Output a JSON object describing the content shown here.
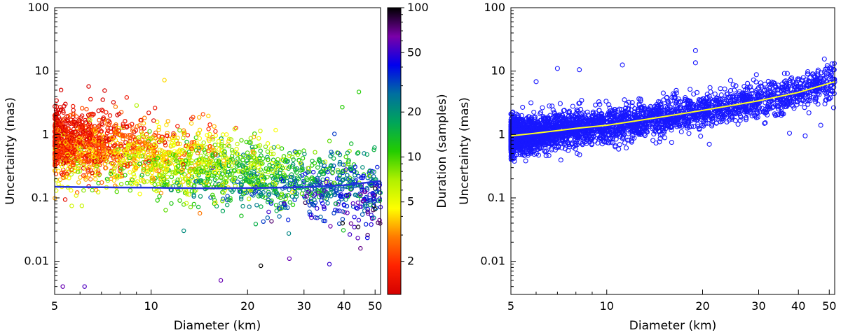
{
  "chart_data": [
    {
      "type": "scatter",
      "xlabel": "Diameter (km)",
      "ylabel": "Uncertainty (mas)",
      "xscale": "log",
      "yscale": "log",
      "xlim": [
        5,
        52
      ],
      "ylim": [
        0.003,
        100
      ],
      "xticks": [
        5,
        10,
        20,
        30,
        40,
        50
      ],
      "xtick_labels": [
        "5",
        "10",
        "20",
        "30",
        "40",
        "50"
      ],
      "yticks": [
        0.01,
        0.1,
        1,
        10,
        100
      ],
      "ytick_labels": [
        "0.01",
        "0.1",
        "1",
        "10",
        "100"
      ],
      "grid": false,
      "marker": "open-circle",
      "point_color_encoding": "Duration (samples)",
      "colorbar": {
        "label": "Duration (samples)",
        "scale": "log",
        "range": [
          1.2,
          100
        ],
        "ticks": [
          2,
          5,
          10,
          20,
          50,
          100
        ],
        "tick_labels": [
          "2",
          "5",
          "10",
          "20",
          "50",
          "100"
        ],
        "colormap": [
          "#d40000",
          "#ff2200",
          "#ff7a00",
          "#ffff00",
          "#b0f000",
          "#22cc00",
          "#00a55a",
          "#006fa0",
          "#0000ee",
          "#7a00a8",
          "#000000"
        ]
      },
      "trend_line": {
        "color": "#2233dd",
        "x": [
          5,
          6,
          7,
          8,
          10,
          12,
          15,
          20,
          25,
          30,
          40,
          52
        ],
        "y": [
          0.15,
          0.148,
          0.147,
          0.146,
          0.145,
          0.143,
          0.142,
          0.143,
          0.145,
          0.148,
          0.158,
          0.185
        ]
      },
      "outliers": [
        {
          "x": 11,
          "y": 7.2,
          "duration": 4
        },
        {
          "x": 44.5,
          "y": 4.7,
          "duration": 11
        },
        {
          "x": 39.5,
          "y": 2.7,
          "duration": 11
        },
        {
          "x": 5.3,
          "y": 0.004,
          "duration": 60
        },
        {
          "x": 6.2,
          "y": 0.004,
          "duration": 55
        },
        {
          "x": 16.5,
          "y": 0.005,
          "duration": 60
        },
        {
          "x": 22,
          "y": 0.0085,
          "duration": 100
        },
        {
          "x": 27,
          "y": 0.011,
          "duration": 60
        },
        {
          "x": 36,
          "y": 0.009,
          "duration": 50
        },
        {
          "x": 45,
          "y": 0.016,
          "duration": 70
        }
      ]
    },
    {
      "type": "scatter",
      "xlabel": "Diameter (km)",
      "ylabel": "Uncertainty (mas)",
      "xscale": "log",
      "yscale": "log",
      "xlim": [
        5,
        52
      ],
      "ylim": [
        0.003,
        100
      ],
      "xticks": [
        5,
        10,
        20,
        30,
        40,
        50
      ],
      "xtick_labels": [
        "5",
        "10",
        "20",
        "30",
        "40",
        "50"
      ],
      "yticks": [
        0.01,
        0.1,
        1,
        10,
        100
      ],
      "ytick_labels": [
        "0.01",
        "0.1",
        "1",
        "10",
        "100"
      ],
      "grid": false,
      "marker": "open-circle",
      "marker_color": "#1818ff",
      "trend_line": {
        "color": "#ffff22",
        "x": [
          5,
          6,
          7,
          8,
          10,
          12,
          15,
          20,
          25,
          30,
          40,
          52
        ],
        "y": [
          0.95,
          1.05,
          1.15,
          1.25,
          1.4,
          1.6,
          1.9,
          2.4,
          2.9,
          3.4,
          4.6,
          6.8
        ]
      },
      "outliers": [
        {
          "x": 7,
          "y": 11
        },
        {
          "x": 8.2,
          "y": 10.5
        },
        {
          "x": 11.2,
          "y": 12.5
        },
        {
          "x": 19,
          "y": 21
        },
        {
          "x": 19,
          "y": 13.5
        },
        {
          "x": 6,
          "y": 6.8
        },
        {
          "x": 21,
          "y": 0.7
        },
        {
          "x": 37.5,
          "y": 1.05
        },
        {
          "x": 42,
          "y": 0.95
        },
        {
          "x": 47,
          "y": 1.4
        },
        {
          "x": 51,
          "y": 13
        }
      ]
    }
  ]
}
